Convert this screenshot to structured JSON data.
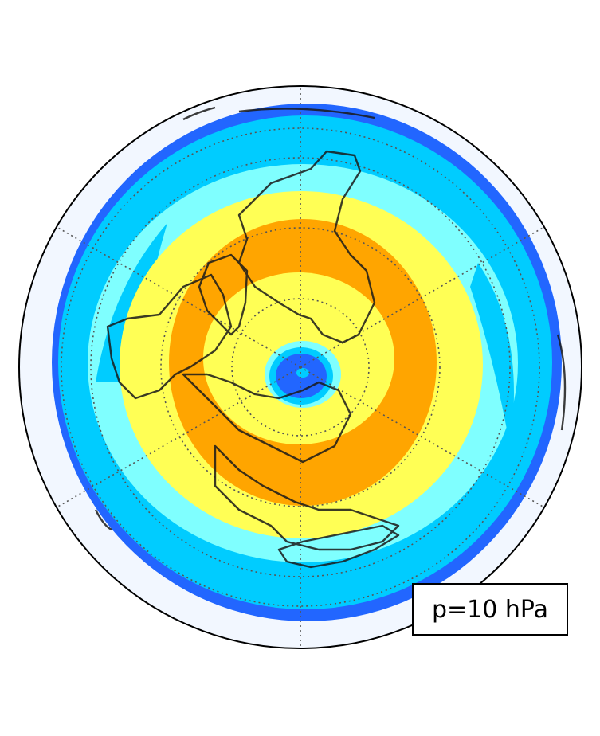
{
  "map": {
    "projection": "north-polar-stereographic",
    "annotation": "p=10 hPa",
    "gridlines": "dotted",
    "coastlines": true,
    "contour_levels_colors": [
      "#f2f7ff",
      "#2266ff",
      "#00ccff",
      "#7fffff",
      "#ffff55",
      "#ffa500"
    ]
  }
}
